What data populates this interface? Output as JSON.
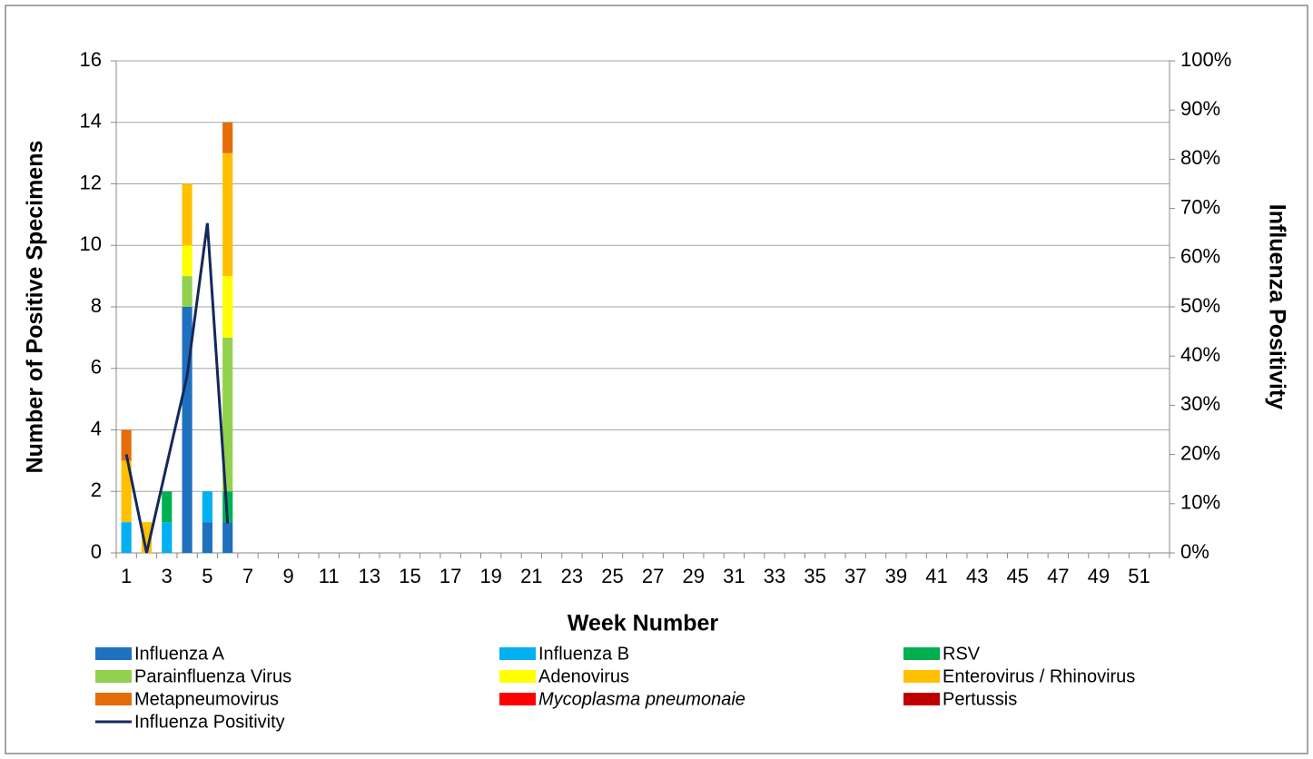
{
  "chart_data": {
    "type": "bar",
    "stacked": true,
    "x_label": "Week Number",
    "y_label": "Number of Positive Specimens",
    "y2_label": "Influenza Positivity",
    "categories": [
      "1",
      null,
      "3",
      null,
      "5",
      null,
      "7",
      null,
      "9",
      null,
      "11",
      null,
      "13",
      null,
      "15",
      null,
      "17",
      null,
      "19",
      null,
      "21",
      null,
      "23",
      null,
      "25",
      null,
      "27",
      null,
      "29",
      null,
      "31",
      null,
      "33",
      null,
      "35",
      null,
      "37",
      null,
      "39",
      null,
      "41",
      null,
      "43",
      null,
      "45",
      null,
      "47",
      null,
      "49",
      null,
      "51",
      null
    ],
    "ylim": [
      0,
      16
    ],
    "yticks": [
      0,
      2,
      4,
      6,
      8,
      10,
      12,
      14,
      16
    ],
    "y2lim": [
      0,
      100
    ],
    "y2ticks": [
      {
        "value": 0,
        "label": "0%"
      },
      {
        "value": 10,
        "label": "10%"
      },
      {
        "value": 20,
        "label": "20%"
      },
      {
        "value": 30,
        "label": "30%"
      },
      {
        "value": 40,
        "label": "40%"
      },
      {
        "value": 50,
        "label": "50%"
      },
      {
        "value": 60,
        "label": "60%"
      },
      {
        "value": 70,
        "label": "70%"
      },
      {
        "value": 80,
        "label": "80%"
      },
      {
        "value": 90,
        "label": "90%"
      },
      {
        "value": 100,
        "label": "100%"
      }
    ],
    "grid": true,
    "series": [
      {
        "name": "Influenza A",
        "color": "#2070c0",
        "values": [
          null,
          null,
          null,
          8,
          1,
          1,
          null,
          null,
          null,
          null,
          null,
          null,
          null,
          null,
          null,
          null,
          null,
          null,
          null,
          null,
          null,
          null,
          null,
          null,
          null,
          null,
          null,
          null,
          null,
          null,
          null,
          null,
          null,
          null,
          null,
          null,
          null,
          null,
          null,
          null,
          null,
          null,
          null,
          null,
          null,
          null,
          null,
          null,
          null,
          null,
          null,
          null
        ]
      },
      {
        "name": "Influenza B",
        "color": "#00b0f0",
        "values": [
          1,
          null,
          1,
          null,
          1,
          null,
          null,
          null,
          null,
          null,
          null,
          null,
          null,
          null,
          null,
          null,
          null,
          null,
          null,
          null,
          null,
          null,
          null,
          null,
          null,
          null,
          null,
          null,
          null,
          null,
          null,
          null,
          null,
          null,
          null,
          null,
          null,
          null,
          null,
          null,
          null,
          null,
          null,
          null,
          null,
          null,
          null,
          null,
          null,
          null,
          null,
          null
        ]
      },
      {
        "name": "RSV",
        "color": "#00b050",
        "values": [
          null,
          null,
          1,
          null,
          null,
          1,
          null,
          null,
          null,
          null,
          null,
          null,
          null,
          null,
          null,
          null,
          null,
          null,
          null,
          null,
          null,
          null,
          null,
          null,
          null,
          null,
          null,
          null,
          null,
          null,
          null,
          null,
          null,
          null,
          null,
          null,
          null,
          null,
          null,
          null,
          null,
          null,
          null,
          null,
          null,
          null,
          null,
          null,
          null,
          null,
          null,
          null
        ]
      },
      {
        "name": "Parainfluenza Virus",
        "color": "#92d050",
        "values": [
          null,
          null,
          null,
          1,
          null,
          5,
          null,
          null,
          null,
          null,
          null,
          null,
          null,
          null,
          null,
          null,
          null,
          null,
          null,
          null,
          null,
          null,
          null,
          null,
          null,
          null,
          null,
          null,
          null,
          null,
          null,
          null,
          null,
          null,
          null,
          null,
          null,
          null,
          null,
          null,
          null,
          null,
          null,
          null,
          null,
          null,
          null,
          null,
          null,
          null,
          null,
          null
        ]
      },
      {
        "name": "Adenovirus",
        "color": "#ffff00",
        "values": [
          null,
          null,
          null,
          1,
          null,
          2,
          null,
          null,
          null,
          null,
          null,
          null,
          null,
          null,
          null,
          null,
          null,
          null,
          null,
          null,
          null,
          null,
          null,
          null,
          null,
          null,
          null,
          null,
          null,
          null,
          null,
          null,
          null,
          null,
          null,
          null,
          null,
          null,
          null,
          null,
          null,
          null,
          null,
          null,
          null,
          null,
          null,
          null,
          null,
          null,
          null,
          null
        ]
      },
      {
        "name": "Enterovirus / Rhinovirus",
        "color": "#ffc000",
        "values": [
          2,
          1,
          null,
          2,
          null,
          4,
          null,
          null,
          null,
          null,
          null,
          null,
          null,
          null,
          null,
          null,
          null,
          null,
          null,
          null,
          null,
          null,
          null,
          null,
          null,
          null,
          null,
          null,
          null,
          null,
          null,
          null,
          null,
          null,
          null,
          null,
          null,
          null,
          null,
          null,
          null,
          null,
          null,
          null,
          null,
          null,
          null,
          null,
          null,
          null,
          null,
          null
        ]
      },
      {
        "name": "Metapneumovirus",
        "color": "#e46c0a",
        "values": [
          1,
          null,
          null,
          null,
          null,
          1,
          null,
          null,
          null,
          null,
          null,
          null,
          null,
          null,
          null,
          null,
          null,
          null,
          null,
          null,
          null,
          null,
          null,
          null,
          null,
          null,
          null,
          null,
          null,
          null,
          null,
          null,
          null,
          null,
          null,
          null,
          null,
          null,
          null,
          null,
          null,
          null,
          null,
          null,
          null,
          null,
          null,
          null,
          null,
          null,
          null,
          null
        ]
      },
      {
        "name": "Mycoplasma pneumonaie",
        "color": "#ff0000",
        "values": [
          null,
          null,
          null,
          null,
          null,
          null,
          null,
          null,
          null,
          null,
          null,
          null,
          null,
          null,
          null,
          null,
          null,
          null,
          null,
          null,
          null,
          null,
          null,
          null,
          null,
          null,
          null,
          null,
          null,
          null,
          null,
          null,
          null,
          null,
          null,
          null,
          null,
          null,
          null,
          null,
          null,
          null,
          null,
          null,
          null,
          null,
          null,
          null,
          null,
          null,
          null,
          null
        ]
      },
      {
        "name": "Pertussis",
        "color": "#c00000",
        "values": [
          null,
          null,
          null,
          null,
          null,
          null,
          null,
          null,
          null,
          null,
          null,
          null,
          null,
          null,
          null,
          null,
          null,
          null,
          null,
          null,
          null,
          null,
          null,
          null,
          null,
          null,
          null,
          null,
          null,
          null,
          null,
          null,
          null,
          null,
          null,
          null,
          null,
          null,
          null,
          null,
          null,
          null,
          null,
          null,
          null,
          null,
          null,
          null,
          null,
          null,
          null,
          null
        ]
      },
      {
        "name": "Influenza Positivity",
        "color": "#14285a",
        "type": "line",
        "axis": "y2",
        "values": [
          20,
          0,
          18,
          36,
          67,
          6,
          null,
          null,
          null,
          null,
          null,
          null,
          null,
          null,
          null,
          null,
          null,
          null,
          null,
          null,
          null,
          null,
          null,
          null,
          null,
          null,
          null,
          null,
          null,
          null,
          null,
          null,
          null,
          null,
          null,
          null,
          null,
          null,
          null,
          null,
          null,
          null,
          null,
          null,
          null,
          null,
          null,
          null,
          null,
          null,
          null,
          null
        ]
      }
    ]
  }
}
